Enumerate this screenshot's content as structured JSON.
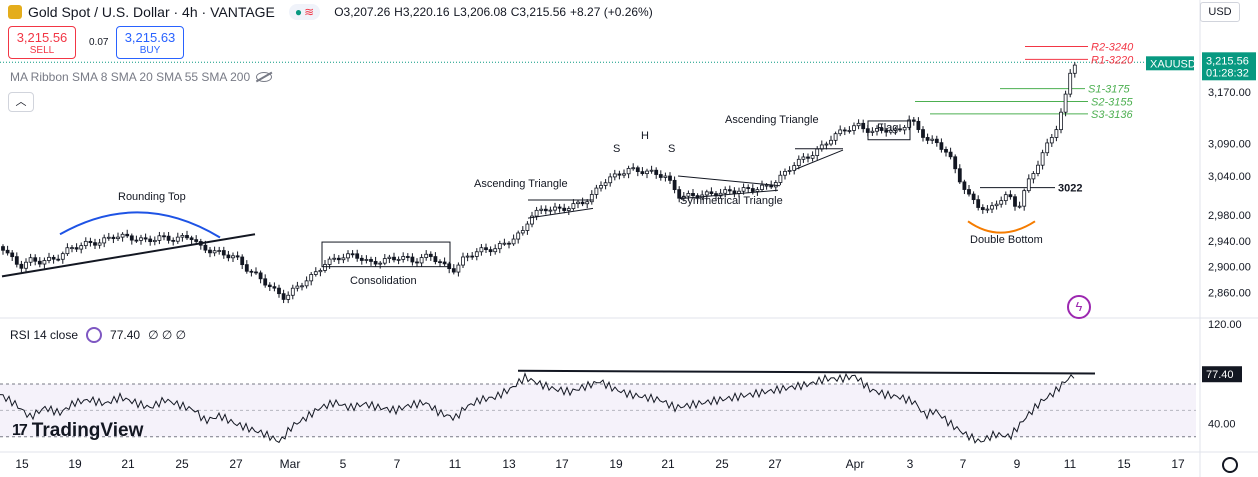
{
  "header": {
    "title": "Gold Spot / U.S. Dollar · 4h · VANTAGE",
    "open": "O3,207.26",
    "high": "H3,220.16",
    "low": "L3,206.08",
    "close": "C3,215.56",
    "change": "+8.27 (+0.26%)",
    "pill_left": "●",
    "pill_right": "≋"
  },
  "trade": {
    "sell_price": "3,215.56",
    "sell_label": "SELL",
    "buy_price": "3,215.63",
    "buy_label": "BUY",
    "spread": "0.07"
  },
  "ma_legend": "MA Ribbon SMA 8 SMA 20 SMA 55 SMA 200",
  "currency_button": "USD",
  "rsi": {
    "legend": "RSI 14 close",
    "value": "77.40",
    "extra": "∅ ∅ ∅",
    "axis_ticks": [
      "120.00",
      "40.00"
    ],
    "current_tag": "77.40"
  },
  "branding": "TradingView",
  "colors": {
    "up": "#089981",
    "down": "#f23645",
    "rsi_line": "#131722",
    "support": "#4caf50",
    "resistance": "#f23645",
    "pattern": "#1e53e5",
    "price_tag": "#089981",
    "rsi_band": "#7e57c2"
  },
  "chart_data": {
    "type": "candlestick",
    "symbol": "XAUUSD",
    "timeframe": "4h",
    "current_price": "3,215.56",
    "countdown": "01:28:32",
    "ylim": [
      2830,
      3250
    ],
    "y_ticks": [
      "3,170.00",
      "3,090.00",
      "3,040.00",
      "2,980.00",
      "2,940.00",
      "2,900.00",
      "2,860.00"
    ],
    "x_ticks": [
      "15",
      "19",
      "21",
      "25",
      "27",
      "Mar",
      "5",
      "7",
      "11",
      "13",
      "17",
      "19",
      "21",
      "25",
      "27",
      "Apr",
      "3",
      "7",
      "9",
      "11",
      "15",
      "17"
    ],
    "levels": [
      {
        "label": "R2-3240",
        "value": 3240
      },
      {
        "label": "R1-3220",
        "value": 3220
      },
      {
        "label": "S1-3175",
        "value": 3175
      },
      {
        "label": "S2-3155",
        "value": 3155
      },
      {
        "label": "S3-3136",
        "value": 3136
      },
      {
        "label": "3022",
        "value": 3022
      }
    ],
    "annotations": [
      "Rounding Top",
      "Consolidation",
      "Ascending Triangle",
      "S",
      "H",
      "S",
      "Symmetrical Triangle",
      "Ascending Triangle",
      "Flag",
      "Double Bottom"
    ],
    "price_path": [
      [
        0,
        2935
      ],
      [
        10,
        2915
      ],
      [
        20,
        2900
      ],
      [
        30,
        2910
      ],
      [
        40,
        2908
      ],
      [
        55,
        2912
      ],
      [
        70,
        2928
      ],
      [
        85,
        2935
      ],
      [
        100,
        2938
      ],
      [
        115,
        2948
      ],
      [
        130,
        2945
      ],
      [
        145,
        2940
      ],
      [
        160,
        2945
      ],
      [
        175,
        2942
      ],
      [
        190,
        2948
      ],
      [
        200,
        2930
      ],
      [
        210,
        2925
      ],
      [
        222,
        2920
      ],
      [
        235,
        2915
      ],
      [
        248,
        2895
      ],
      [
        262,
        2880
      ],
      [
        275,
        2862
      ],
      [
        285,
        2852
      ],
      [
        298,
        2870
      ],
      [
        312,
        2885
      ],
      [
        325,
        2905
      ],
      [
        340,
        2915
      ],
      [
        355,
        2918
      ],
      [
        370,
        2905
      ],
      [
        385,
        2910
      ],
      [
        400,
        2915
      ],
      [
        415,
        2908
      ],
      [
        430,
        2918
      ],
      [
        445,
        2900
      ],
      [
        455,
        2895
      ],
      [
        465,
        2915
      ],
      [
        480,
        2925
      ],
      [
        495,
        2928
      ],
      [
        510,
        2940
      ],
      [
        522,
        2952
      ],
      [
        530,
        2978
      ],
      [
        545,
        2990
      ],
      [
        560,
        2988
      ],
      [
        575,
        2995
      ],
      [
        590,
        3005
      ],
      [
        602,
        3030
      ],
      [
        615,
        3040
      ],
      [
        628,
        3050
      ],
      [
        640,
        3048
      ],
      [
        652,
        3045
      ],
      [
        665,
        3040
      ],
      [
        680,
        3008
      ],
      [
        695,
        3010
      ],
      [
        710,
        3012
      ],
      [
        725,
        3015
      ],
      [
        740,
        3018
      ],
      [
        755,
        3020
      ],
      [
        770,
        3025
      ],
      [
        782,
        3040
      ],
      [
        795,
        3060
      ],
      [
        808,
        3070
      ],
      [
        820,
        3082
      ],
      [
        832,
        3100
      ],
      [
        845,
        3112
      ],
      [
        858,
        3118
      ],
      [
        872,
        3108
      ],
      [
        885,
        3112
      ],
      [
        898,
        3108
      ],
      [
        910,
        3128
      ],
      [
        918,
        3112
      ],
      [
        928,
        3095
      ],
      [
        938,
        3090
      ],
      [
        948,
        3075
      ],
      [
        958,
        3040
      ],
      [
        968,
        3010
      ],
      [
        978,
        2995
      ],
      [
        988,
        2985
      ],
      [
        998,
        3002
      ],
      [
        1008,
        3010
      ],
      [
        1018,
        2990
      ],
      [
        1028,
        3030
      ],
      [
        1038,
        3060
      ],
      [
        1048,
        3090
      ],
      [
        1058,
        3120
      ],
      [
        1066,
        3165
      ],
      [
        1072,
        3215
      ]
    ],
    "rsi_path": [
      [
        0,
        62
      ],
      [
        15,
        55
      ],
      [
        30,
        45
      ],
      [
        45,
        52
      ],
      [
        60,
        48
      ],
      [
        75,
        56
      ],
      [
        90,
        58
      ],
      [
        105,
        55
      ],
      [
        120,
        60
      ],
      [
        135,
        56
      ],
      [
        150,
        52
      ],
      [
        165,
        58
      ],
      [
        180,
        54
      ],
      [
        195,
        50
      ],
      [
        205,
        42
      ],
      [
        220,
        46
      ],
      [
        235,
        40
      ],
      [
        250,
        36
      ],
      [
        265,
        32
      ],
      [
        280,
        26
      ],
      [
        292,
        38
      ],
      [
        305,
        44
      ],
      [
        320,
        52
      ],
      [
        335,
        56
      ],
      [
        350,
        52
      ],
      [
        365,
        55
      ],
      [
        380,
        52
      ],
      [
        395,
        50
      ],
      [
        410,
        54
      ],
      [
        425,
        56
      ],
      [
        440,
        48
      ],
      [
        455,
        44
      ],
      [
        465,
        52
      ],
      [
        480,
        58
      ],
      [
        495,
        60
      ],
      [
        510,
        66
      ],
      [
        525,
        75
      ],
      [
        540,
        70
      ],
      [
        555,
        66
      ],
      [
        570,
        64
      ],
      [
        585,
        68
      ],
      [
        600,
        72
      ],
      [
        615,
        66
      ],
      [
        630,
        62
      ],
      [
        645,
        60
      ],
      [
        660,
        58
      ],
      [
        675,
        52
      ],
      [
        690,
        54
      ],
      [
        705,
        56
      ],
      [
        720,
        58
      ],
      [
        735,
        60
      ],
      [
        750,
        62
      ],
      [
        765,
        64
      ],
      [
        780,
        66
      ],
      [
        795,
        68
      ],
      [
        810,
        70
      ],
      [
        825,
        74
      ],
      [
        840,
        74
      ],
      [
        855,
        76
      ],
      [
        870,
        66
      ],
      [
        885,
        62
      ],
      [
        900,
        60
      ],
      [
        915,
        56
      ],
      [
        925,
        46
      ],
      [
        935,
        50
      ],
      [
        950,
        40
      ],
      [
        965,
        32
      ],
      [
        980,
        26
      ],
      [
        995,
        32
      ],
      [
        1010,
        30
      ],
      [
        1025,
        44
      ],
      [
        1040,
        56
      ],
      [
        1055,
        64
      ],
      [
        1065,
        72
      ],
      [
        1075,
        77.4
      ]
    ],
    "rsi_ylim": [
      20,
      120
    ],
    "rsi_bands": [
      70,
      30
    ]
  }
}
